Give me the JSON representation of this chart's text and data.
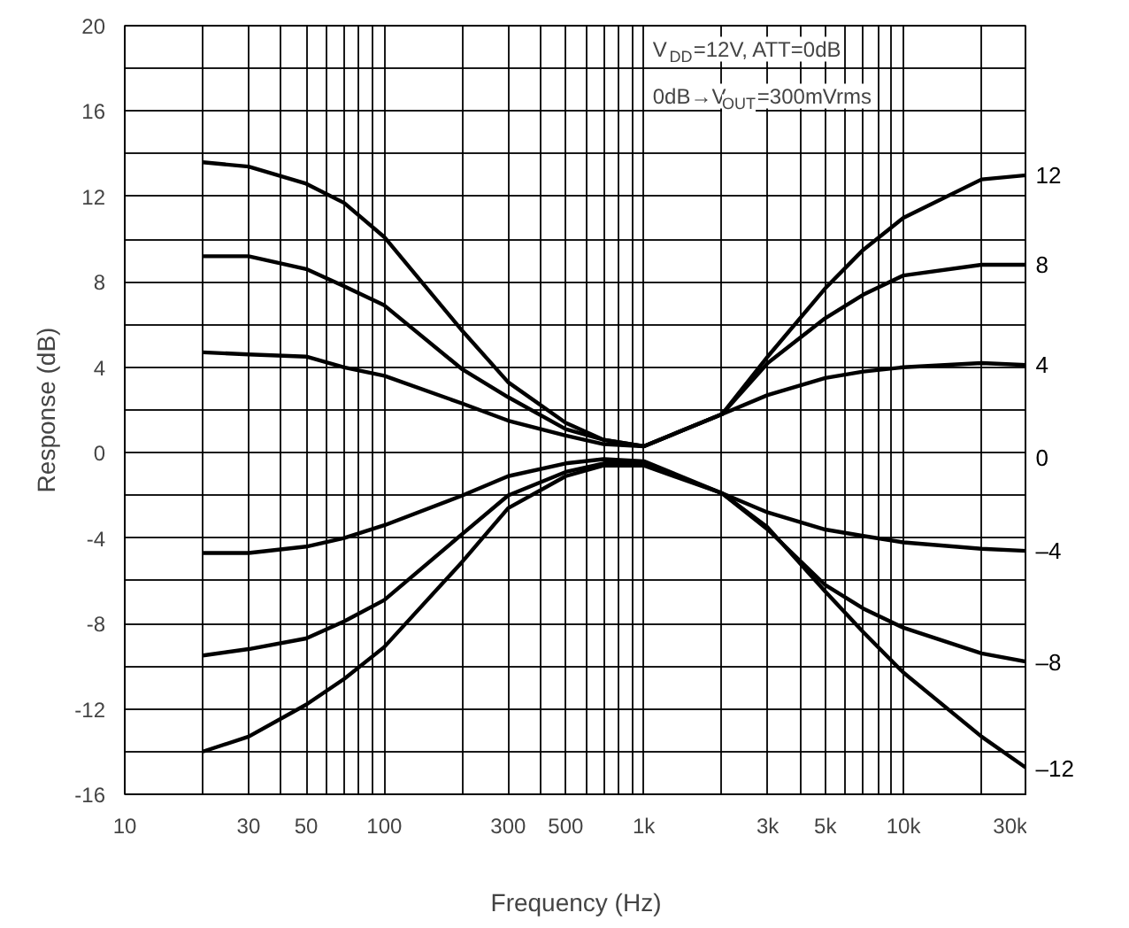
{
  "chart_data": {
    "type": "line",
    "xlabel": "Frequency (Hz)",
    "ylabel": "Response (dB)",
    "log": "x",
    "grid": true,
    "marker": "none",
    "line_style": "solid",
    "x": [
      20,
      30,
      50,
      70,
      100,
      200,
      300,
      500,
      700,
      1000,
      2000,
      3000,
      5000,
      7000,
      10000,
      20000,
      30000
    ],
    "xlim": [
      10,
      30000
    ],
    "xticks": [
      {
        "value": 10,
        "label": "10"
      },
      {
        "value": 20,
        "label": null
      },
      {
        "value": 30,
        "label": "30"
      },
      {
        "value": 40,
        "label": null
      },
      {
        "value": 50,
        "label": "50"
      },
      {
        "value": 60,
        "label": null
      },
      {
        "value": 70,
        "label": null
      },
      {
        "value": 80,
        "label": null
      },
      {
        "value": 90,
        "label": null
      },
      {
        "value": 100,
        "label": "100"
      },
      {
        "value": 200,
        "label": null
      },
      {
        "value": 300,
        "label": "300"
      },
      {
        "value": 400,
        "label": null
      },
      {
        "value": 500,
        "label": "500"
      },
      {
        "value": 600,
        "label": null
      },
      {
        "value": 700,
        "label": null
      },
      {
        "value": 800,
        "label": null
      },
      {
        "value": 900,
        "label": null
      },
      {
        "value": 1000,
        "label": "1k"
      },
      {
        "value": 2000,
        "label": null
      },
      {
        "value": 3000,
        "label": "3k"
      },
      {
        "value": 4000,
        "label": null
      },
      {
        "value": 5000,
        "label": "5k"
      },
      {
        "value": 6000,
        "label": null
      },
      {
        "value": 7000,
        "label": null
      },
      {
        "value": 8000,
        "label": null
      },
      {
        "value": 9000,
        "label": null
      },
      {
        "value": 10000,
        "label": "10k"
      },
      {
        "value": 20000,
        "label": null
      },
      {
        "value": 30000,
        "label": "30k"
      }
    ],
    "ylim": [
      -16,
      20
    ],
    "yticks": [
      -16,
      {
        "value": -14,
        "label": null
      },
      -12,
      {
        "value": -10,
        "label": null
      },
      -8,
      {
        "value": -6,
        "label": null
      },
      -4,
      {
        "value": -2,
        "label": null
      },
      0,
      {
        "value": 2,
        "label": null
      },
      4,
      {
        "value": 6,
        "label": null
      },
      8,
      {
        "value": 10,
        "label": null
      },
      12,
      {
        "value": 14,
        "label": null
      },
      16,
      {
        "value": 18,
        "label": null
      },
      20
    ],
    "series": [
      {
        "name": "12",
        "color": "#000000",
        "values": [
          13.6,
          13.4,
          12.6,
          11.7,
          10.1,
          5.7,
          3.3,
          1.4,
          0.6,
          0.3,
          1.8,
          4.5,
          7.7,
          9.5,
          11.0,
          12.8,
          13.0
        ]
      },
      {
        "name": "8",
        "color": "#000000",
        "values": [
          9.2,
          9.2,
          8.6,
          7.8,
          6.9,
          3.9,
          2.6,
          1.1,
          0.6,
          0.3,
          1.8,
          4.2,
          6.3,
          7.4,
          8.3,
          8.8,
          8.8
        ]
      },
      {
        "name": "4",
        "color": "#000000",
        "values": [
          4.7,
          4.6,
          4.5,
          4.0,
          3.6,
          2.3,
          1.5,
          0.8,
          0.4,
          0.3,
          1.8,
          2.7,
          3.5,
          3.8,
          4.0,
          4.2,
          4.1
        ]
      },
      {
        "name": "–4",
        "color": "#000000",
        "values": [
          -4.7,
          -4.7,
          -4.4,
          -4.0,
          -3.4,
          -2.0,
          -1.1,
          -0.5,
          -0.3,
          -0.4,
          -1.9,
          -2.8,
          -3.6,
          -3.9,
          -4.2,
          -4.5,
          -4.6
        ]
      },
      {
        "name": "–8",
        "color": "#000000",
        "values": [
          -9.5,
          -9.2,
          -8.7,
          -7.9,
          -6.9,
          -3.8,
          -2.0,
          -0.9,
          -0.5,
          -0.5,
          -1.9,
          -3.6,
          -6.2,
          -7.3,
          -8.2,
          -9.4,
          -9.8
        ]
      },
      {
        "name": "–12",
        "color": "#000000",
        "values": [
          -14.0,
          -13.3,
          -11.8,
          -10.6,
          -9.1,
          -5.1,
          -2.6,
          -1.1,
          -0.6,
          -0.6,
          -1.9,
          -3.5,
          -6.5,
          -8.4,
          -10.3,
          -13.3,
          -14.8
        ]
      }
    ],
    "annotations": [
      "V$_{DD}$=12V, ATT=0dB",
      "0dB→V$_{OUT}$=300mVrms",
      "0"
    ]
  }
}
